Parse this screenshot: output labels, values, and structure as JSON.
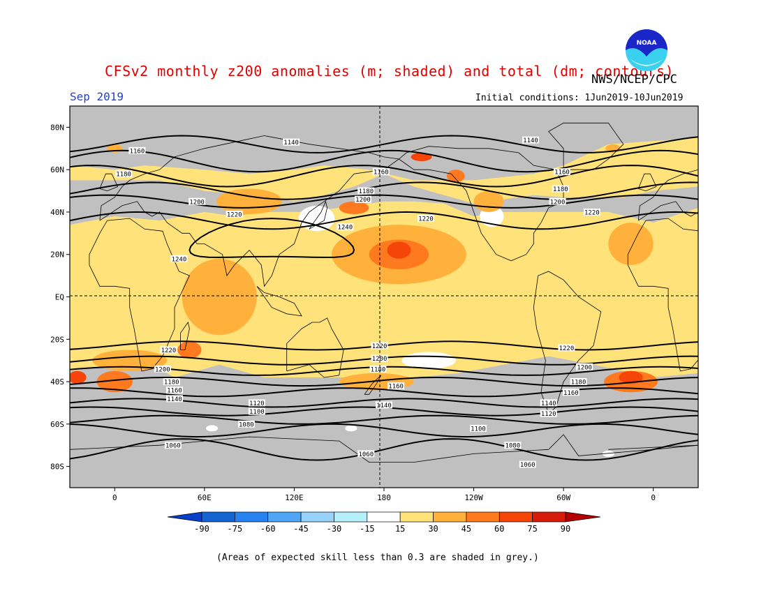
{
  "header": {
    "title": "CFSv2 monthly z200 anomalies (m; shaded) and total (dm; contours)",
    "agency": "NWS/NCEP/CPC",
    "month": "Sep 2019",
    "initial_conditions": "Initial conditions: 1Jun2019-10Jun2019"
  },
  "logo": {
    "text": "NOAA",
    "icon": "noaa-logo-icon"
  },
  "footnote": "(Areas of expected skill less than 0.3 are shaded in grey.)",
  "colors": {
    "grey": "#c0c0c0",
    "white": "#ffffff",
    "yellow": "#ffe37a",
    "light_orange": "#ffb13c",
    "orange": "#ff7a1f",
    "red_orange": "#f54508",
    "red": "#d81c0b",
    "dark_red": "#b40000",
    "blues": [
      "#1464d2",
      "#2882f0",
      "#50a5f5",
      "#96d2fa",
      "#b4f0fa"
    ],
    "title_red": "#e00000",
    "month_blue": "#1f3fd6"
  },
  "map": {
    "lat_labels": [
      "80N",
      "60N",
      "40N",
      "20N",
      "EQ",
      "20S",
      "40S",
      "60S",
      "80S"
    ],
    "lon_labels": [
      "0",
      "60E",
      "120E",
      "180",
      "120W",
      "60W",
      "0"
    ]
  },
  "legend": {
    "labels": [
      "-90",
      "-75",
      "-60",
      "-45",
      "-30",
      "-15",
      "15",
      "30",
      "45",
      "60",
      "75",
      "90"
    ]
  },
  "contours": {
    "labels": [
      {
        "text": "1140",
        "lon": 118,
        "lat": 73
      },
      {
        "text": "1140",
        "lon": 278,
        "lat": 74
      },
      {
        "text": "1160",
        "lon": 15,
        "lat": 69
      },
      {
        "text": "1160",
        "lon": 178,
        "lat": 59
      },
      {
        "text": "1160",
        "lon": 299,
        "lat": 59
      },
      {
        "text": "1180",
        "lon": 6,
        "lat": 58
      },
      {
        "text": "1180",
        "lon": 168,
        "lat": 50
      },
      {
        "text": "1180",
        "lon": 298,
        "lat": 51
      },
      {
        "text": "1200",
        "lon": 55,
        "lat": 45
      },
      {
        "text": "1200",
        "lon": 166,
        "lat": 46
      },
      {
        "text": "1200",
        "lon": 296,
        "lat": 45
      },
      {
        "text": "1220",
        "lon": 80,
        "lat": 39
      },
      {
        "text": "1220",
        "lon": 208,
        "lat": 37
      },
      {
        "text": "1220",
        "lon": 319,
        "lat": 40
      },
      {
        "text": "1240",
        "lon": 154,
        "lat": 33
      },
      {
        "text": "1240",
        "lon": 43,
        "lat": 18
      },
      {
        "text": "1220",
        "lon": 36,
        "lat": -25
      },
      {
        "text": "1220",
        "lon": 177,
        "lat": -23
      },
      {
        "text": "1220",
        "lon": 302,
        "lat": -24
      },
      {
        "text": "1200",
        "lon": 32,
        "lat": -34
      },
      {
        "text": "1200",
        "lon": 177,
        "lat": -29
      },
      {
        "text": "1200",
        "lon": 314,
        "lat": -33
      },
      {
        "text": "1180",
        "lon": 38,
        "lat": -40
      },
      {
        "text": "1180",
        "lon": 176,
        "lat": -34
      },
      {
        "text": "1180",
        "lon": 310,
        "lat": -40
      },
      {
        "text": "1160",
        "lon": 40,
        "lat": -44
      },
      {
        "text": "1160",
        "lon": 188,
        "lat": -42
      },
      {
        "text": "1160",
        "lon": 305,
        "lat": -45
      },
      {
        "text": "1140",
        "lon": 40,
        "lat": -48
      },
      {
        "text": "1140",
        "lon": 180,
        "lat": -51
      },
      {
        "text": "1140",
        "lon": 290,
        "lat": -50
      },
      {
        "text": "1120",
        "lon": 95,
        "lat": -50
      },
      {
        "text": "1120",
        "lon": 290,
        "lat": -55
      },
      {
        "text": "1100",
        "lon": 95,
        "lat": -54
      },
      {
        "text": "1100",
        "lon": 243,
        "lat": -62
      },
      {
        "text": "1080",
        "lon": 88,
        "lat": -60
      },
      {
        "text": "1080",
        "lon": 266,
        "lat": -70
      },
      {
        "text": "1060",
        "lon": 39,
        "lat": -70
      },
      {
        "text": "1060",
        "lon": 168,
        "lat": -74
      },
      {
        "text": "1060",
        "lon": 276,
        "lat": -79
      }
    ]
  }
}
